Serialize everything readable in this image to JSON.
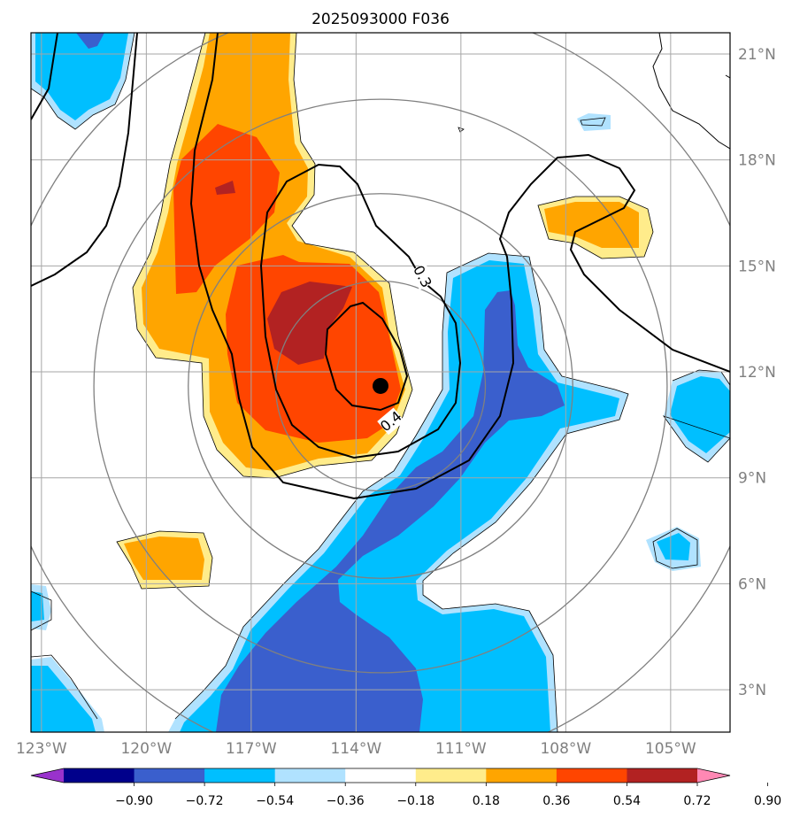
{
  "title": "2025093000 F036",
  "map": {
    "lon_range": [
      -123.3,
      -103.3
    ],
    "lat_range": [
      1.8,
      21.6
    ],
    "lon_ticks": [
      {
        "value": -123,
        "label": "123°W"
      },
      {
        "value": -120,
        "label": "120°W"
      },
      {
        "value": -117,
        "label": "117°W"
      },
      {
        "value": -114,
        "label": "114°W"
      },
      {
        "value": -111,
        "label": "111°W"
      },
      {
        "value": -108,
        "label": "108°W"
      },
      {
        "value": -105,
        "label": "105°W"
      }
    ],
    "lat_ticks": [
      {
        "value": 3,
        "label": "3°N"
      },
      {
        "value": 6,
        "label": "6°N"
      },
      {
        "value": 9,
        "label": "9°N"
      },
      {
        "value": 12,
        "label": "12°N"
      },
      {
        "value": 15,
        "label": "15°N"
      },
      {
        "value": 18,
        "label": "18°N"
      },
      {
        "value": 21,
        "label": "21°N"
      }
    ],
    "storm_center": {
      "lon": -113.3,
      "lat": 11.6
    },
    "range_rings_deg": [
      3,
      5.5,
      8.2,
      11
    ],
    "contour_labels": [
      {
        "text": "0.3",
        "lon": -112.1,
        "lat": 14.7,
        "rotation": 62
      },
      {
        "text": "0.4",
        "lon": -113.0,
        "lat": 10.6,
        "rotation": -40
      }
    ]
  },
  "colorbar": {
    "levels": [
      "−0.90",
      "−0.72",
      "−0.54",
      "−0.36",
      "−0.18",
      "0.18",
      "0.36",
      "0.54",
      "0.72",
      "0.90"
    ],
    "colors": [
      "#9932cc",
      "#00008b",
      "#3a5fcd",
      "#00bfff",
      "#b0e2ff",
      "#ffffff",
      "#ffec8b",
      "#ffa500",
      "#ff4500",
      "#b22222",
      "#ff88b4"
    ]
  },
  "colors": {
    "lightblue": "#b0e2ff",
    "blue": "#00bfff",
    "darkblue": "#3a5fcd",
    "navy": "#00008b",
    "yellow": "#ffec8b",
    "orange": "#ffa500",
    "redorange": "#ff4500",
    "darkred": "#b22222",
    "grid": "#a6a6a6",
    "ring": "#808080"
  }
}
